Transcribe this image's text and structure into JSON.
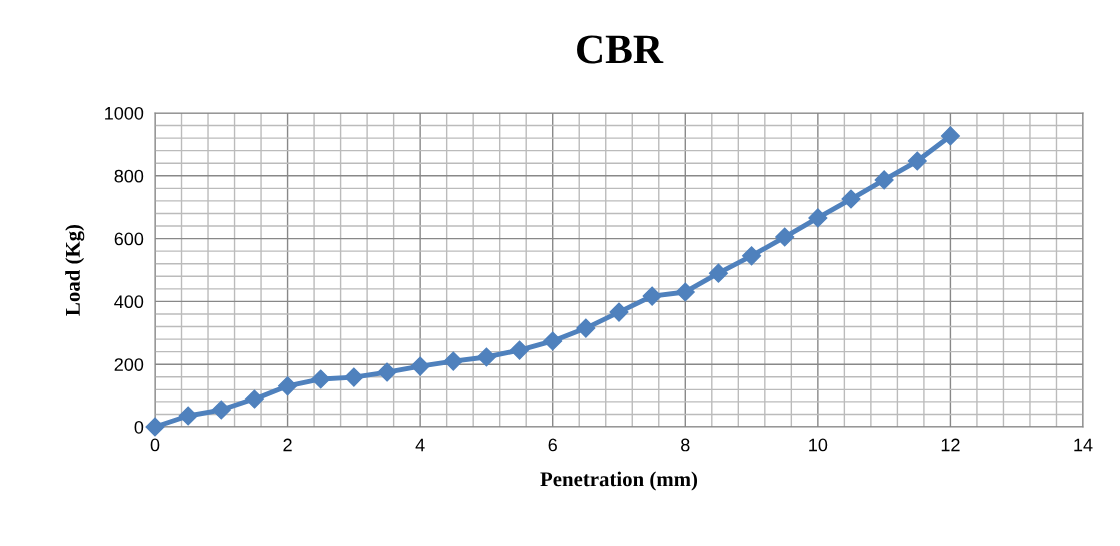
{
  "chart_data": {
    "type": "line",
    "title": "CBR",
    "xlabel": "Penetration (mm)",
    "ylabel": "Load (Kg)",
    "x": [
      0,
      0.5,
      1,
      1.5,
      2,
      2.5,
      3,
      3.5,
      4,
      4.5,
      5,
      5.5,
      6,
      6.5,
      7,
      7.5,
      8,
      8.5,
      9,
      9.5,
      10,
      10.5,
      11,
      11.5,
      12
    ],
    "series": [
      {
        "color": "#4f81bd",
        "values": [
          0,
          35,
          54,
          89,
          131,
          153,
          159,
          175,
          194,
          210,
          223,
          245,
          274,
          315,
          366,
          417,
          430,
          490,
          545,
          605,
          666,
          726,
          787,
          847,
          927
        ]
      }
    ],
    "xlim": [
      0,
      14
    ],
    "xticks": [
      0,
      2,
      4,
      6,
      8,
      10,
      12,
      14
    ],
    "ylim": [
      0,
      1000
    ],
    "yticks": [
      0,
      200,
      400,
      600,
      800,
      1000
    ],
    "grid": true,
    "marker": "diamond",
    "line_style": "solid",
    "legend": false
  }
}
